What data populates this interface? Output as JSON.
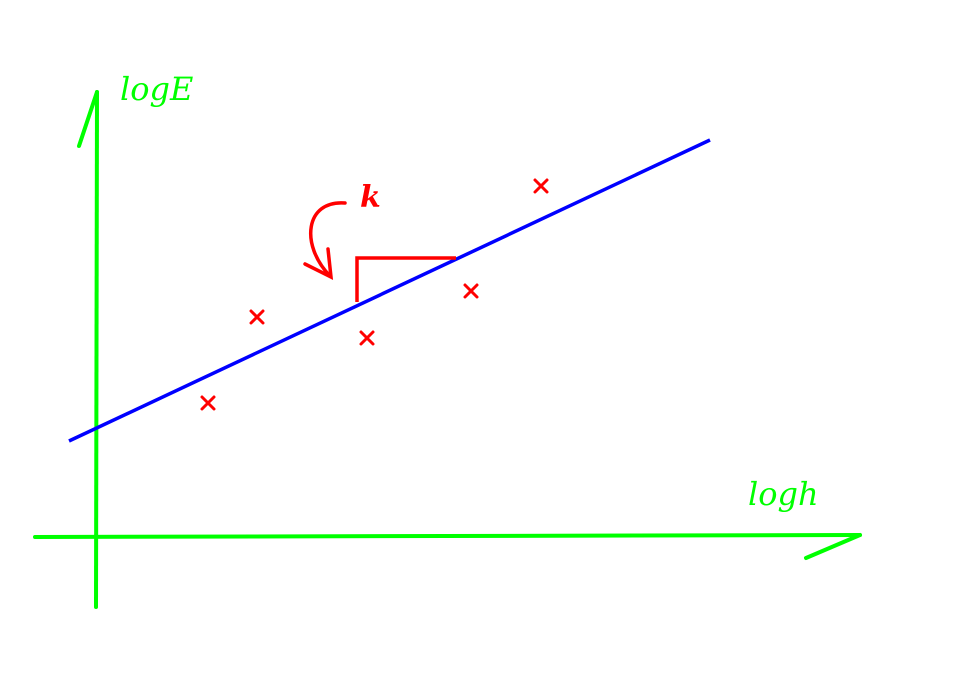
{
  "labels": {
    "y_axis": "logE",
    "x_axis": "logh",
    "slope": "k"
  },
  "colors": {
    "axes": "#00ff00",
    "fit_line": "#0000ff",
    "points": "#ff0000",
    "slope_marker": "#ff0000"
  }
}
